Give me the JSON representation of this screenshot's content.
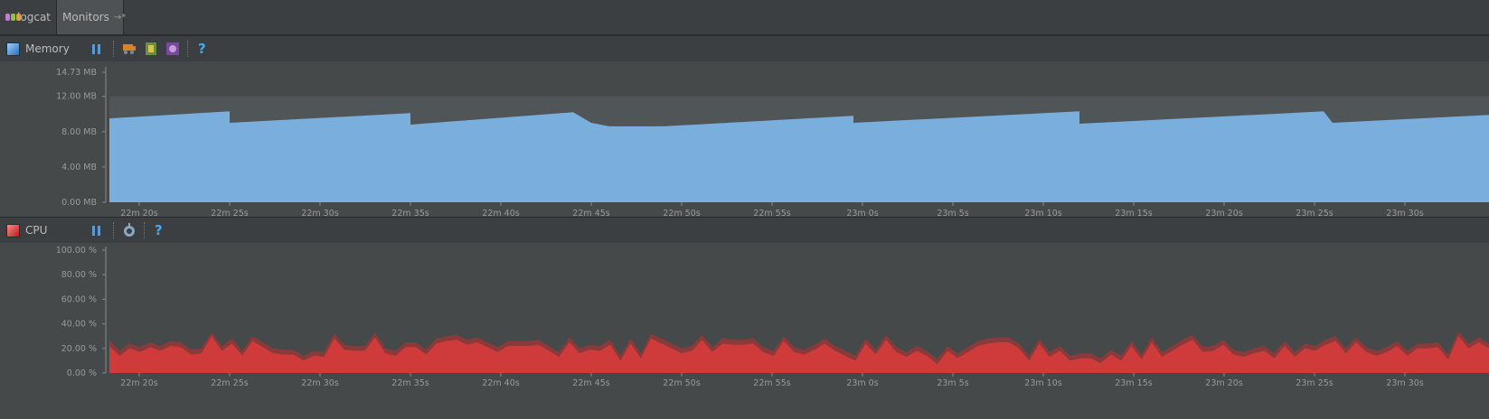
{
  "tabs": [
    {
      "label": "logcat",
      "icon": "android-icon"
    },
    {
      "label": "Monitors",
      "icon": "pin-icon",
      "pin": "→*"
    }
  ],
  "memory": {
    "title": "Memory",
    "title_color": "#4a90c8",
    "y_labels": [
      "14.73 MB",
      "12.00 MB",
      "8.00 MB",
      "4.00 MB",
      "0.00 MB"
    ],
    "y_values_mb": [
      14.73,
      12.0,
      8.0,
      4.0,
      0.0
    ],
    "allocated_mb": 12.0,
    "fill_color": "#7aaedd",
    "free_color": "#505558",
    "help": "?"
  },
  "cpu": {
    "title": "CPU",
    "title_color": "#d93f3f",
    "y_labels": [
      "100.00 %",
      "80.00 %",
      "60.00 %",
      "40.00 %",
      "20.00 %",
      "0.00 %"
    ],
    "y_values": [
      100,
      80,
      60,
      40,
      20,
      0
    ],
    "fill_color": "#cf3b3b",
    "shadow_color": "#8a3a3a",
    "help": "?"
  },
  "x_labels": [
    "22m 20s",
    "22m 25s",
    "22m 30s",
    "22m 35s",
    "22m 40s",
    "22m 45s",
    "22m 50s",
    "22m 55s",
    "23m 0s",
    "23m 5s",
    "23m 10s",
    "23m 15s",
    "23m 20s",
    "23m 25s",
    "23m 30s"
  ],
  "chart_data": [
    {
      "type": "area",
      "title": "Memory",
      "ylim": [
        0,
        14.73
      ],
      "ylabel": "",
      "x": [
        "22m 17s",
        "22m 25s",
        "22m 25s",
        "22m 35s",
        "22m 35s",
        "22m 44s",
        "22m 45s",
        "22m 46s",
        "22m 49s",
        "22m 59.5s",
        "22m 59.5s",
        "23m 12s",
        "23m 12s",
        "23m 25.5s",
        "23m 26s",
        "23m 39s"
      ],
      "series": [
        {
          "values": [
            9.5,
            10.3,
            9.0,
            10.1,
            8.8,
            10.2,
            9.0,
            8.6,
            8.6,
            9.8,
            9.0,
            10.3,
            8.9,
            10.3,
            9.0,
            9.9
          ]
        }
      ]
    },
    {
      "type": "area",
      "title": "CPU",
      "ylim": [
        0,
        100
      ],
      "ylabel": "",
      "series": [
        {
          "values": [
            22,
            14,
            20,
            17,
            21,
            18,
            22,
            21,
            15,
            16,
            30,
            18,
            24,
            14,
            26,
            21,
            16,
            15,
            15,
            10,
            14,
            13,
            28,
            19,
            18,
            18,
            29,
            16,
            14,
            21,
            21,
            15,
            24,
            26,
            27,
            23,
            25,
            21,
            17,
            22,
            22,
            22,
            23,
            18,
            13,
            25,
            16,
            19,
            18,
            23,
            10,
            24,
            12,
            28,
            24,
            20,
            16,
            18,
            27,
            17,
            24,
            23,
            23,
            24,
            17,
            14,
            26,
            17,
            15,
            19,
            24,
            18,
            14,
            10,
            24,
            15,
            27,
            17,
            13,
            18,
            14,
            7,
            18,
            12,
            17,
            22,
            24,
            25,
            25,
            20,
            10,
            24,
            13,
            18,
            10,
            12,
            12,
            8,
            15,
            10,
            22,
            11,
            25,
            13,
            18,
            23,
            27,
            17,
            18,
            23,
            15,
            13,
            16,
            18,
            12,
            22,
            13,
            20,
            18,
            23,
            26,
            16,
            25,
            17,
            14,
            17,
            22,
            14,
            20,
            20,
            21,
            11,
            30,
            20,
            25,
            20
          ]
        },
        {
          "values": [
            27,
            18,
            24,
            21,
            25,
            22,
            26,
            25,
            19,
            20,
            33,
            22,
            28,
            18,
            30,
            25,
            20,
            19,
            19,
            14,
            18,
            17,
            32,
            23,
            22,
            22,
            33,
            20,
            18,
            25,
            25,
            19,
            28,
            30,
            31,
            27,
            29,
            25,
            21,
            26,
            26,
            26,
            27,
            22,
            17,
            29,
            20,
            23,
            22,
            27,
            14,
            28,
            16,
            32,
            28,
            24,
            20,
            22,
            31,
            21,
            28,
            27,
            27,
            28,
            21,
            18,
            30,
            21,
            19,
            23,
            28,
            22,
            18,
            14,
            28,
            19,
            31,
            21,
            17,
            22,
            18,
            11,
            22,
            16,
            21,
            26,
            28,
            29,
            29,
            24,
            14,
            28,
            17,
            22,
            14,
            16,
            16,
            12,
            19,
            14,
            26,
            15,
            29,
            17,
            22,
            27,
            31,
            21,
            22,
            27,
            19,
            17,
            20,
            22,
            16,
            26,
            17,
            24,
            22,
            27,
            30,
            20,
            29,
            21,
            18,
            21,
            26,
            18,
            24,
            24,
            25,
            15,
            34,
            24,
            29,
            24
          ]
        }
      ]
    }
  ]
}
